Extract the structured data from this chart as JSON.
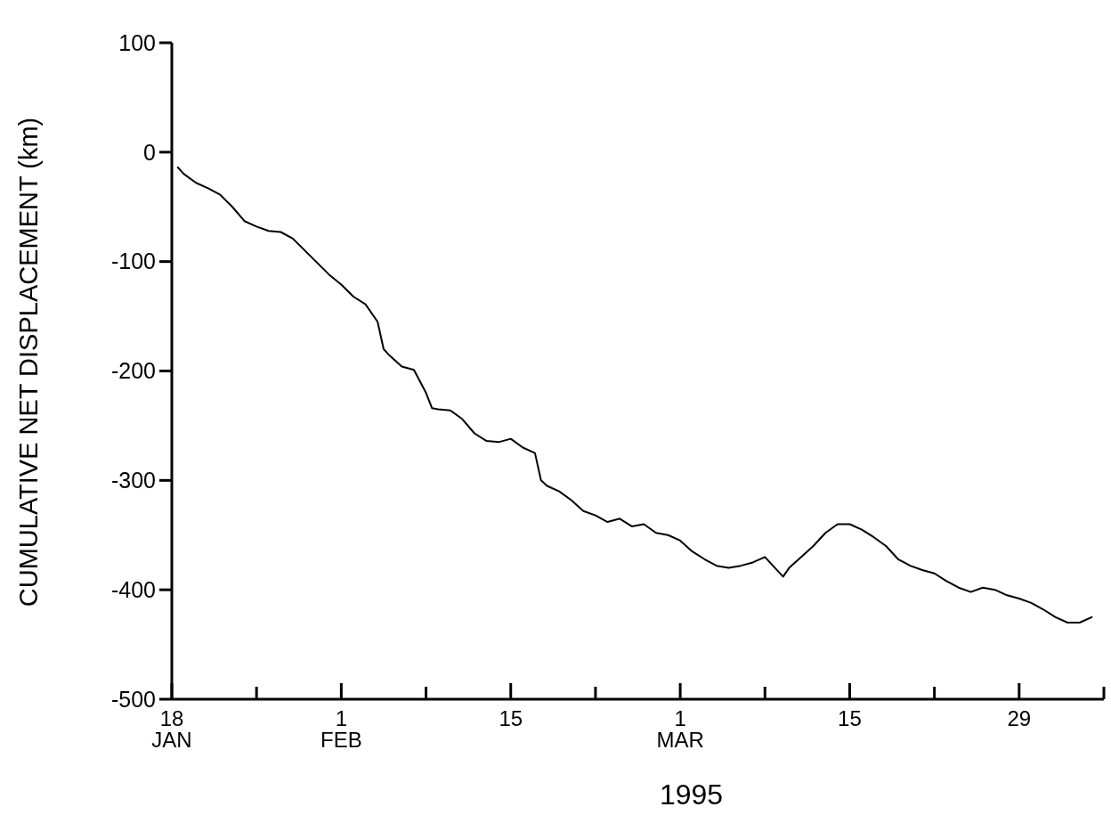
{
  "chart_data": {
    "type": "line",
    "xlabel": "1995",
    "ylabel": "CUMULATIVE NET DISPLACEMENT (km)",
    "xlim": [
      "1995-01-18",
      "1995-04-05"
    ],
    "xticks": [
      {
        "value": "1995-01-18",
        "label": "18\nJAN"
      },
      {
        "value": "1995-01-25",
        "label": null
      },
      {
        "value": "1995-02-01",
        "label": "1\nFEB"
      },
      {
        "value": "1995-02-08",
        "label": null
      },
      {
        "value": "1995-02-15",
        "label": "15"
      },
      {
        "value": "1995-02-22",
        "label": null
      },
      {
        "value": "1995-03-01",
        "label": "1\nMAR"
      },
      {
        "value": "1995-03-08",
        "label": null
      },
      {
        "value": "1995-03-15",
        "label": "15"
      },
      {
        "value": "1995-03-22",
        "label": null
      },
      {
        "value": "1995-03-29",
        "label": "29"
      },
      {
        "value": "1995-04-05",
        "label": null
      }
    ],
    "ylim": [
      -500,
      100
    ],
    "yticks": [
      -500,
      -400,
      -300,
      -200,
      -100,
      0,
      100
    ],
    "grid": false,
    "marker": "none",
    "line_style": "solid",
    "series": [
      {
        "color": "#000000",
        "x": [
          "1995-01-18T12:00",
          "1995-01-19",
          "1995-01-20",
          "1995-01-21",
          "1995-01-22",
          "1995-01-23",
          "1995-01-24",
          "1995-01-25",
          "1995-01-26",
          "1995-01-27",
          "1995-01-28",
          "1995-01-29",
          "1995-01-30",
          "1995-01-31",
          "1995-02-01",
          "1995-02-02",
          "1995-02-03",
          "1995-02-04",
          "1995-02-04T12:00",
          "1995-02-05",
          "1995-02-06",
          "1995-02-07",
          "1995-02-08",
          "1995-02-08T12:00",
          "1995-02-09",
          "1995-02-10",
          "1995-02-11",
          "1995-02-12",
          "1995-02-13",
          "1995-02-14",
          "1995-02-15",
          "1995-02-16",
          "1995-02-17",
          "1995-02-17T12:00",
          "1995-02-18",
          "1995-02-19",
          "1995-02-20",
          "1995-02-21",
          "1995-02-22",
          "1995-02-23",
          "1995-02-24",
          "1995-02-25",
          "1995-02-26",
          "1995-02-27",
          "1995-02-28",
          "1995-03-01",
          "1995-03-02",
          "1995-03-03",
          "1995-03-04",
          "1995-03-05",
          "1995-03-06",
          "1995-03-07",
          "1995-03-08",
          "1995-03-09",
          "1995-03-09T12:00",
          "1995-03-10",
          "1995-03-11",
          "1995-03-12",
          "1995-03-13",
          "1995-03-14",
          "1995-03-15",
          "1995-03-16",
          "1995-03-17",
          "1995-03-18",
          "1995-03-19",
          "1995-03-20",
          "1995-03-21",
          "1995-03-22",
          "1995-03-23",
          "1995-03-24",
          "1995-03-25",
          "1995-03-26",
          "1995-03-27",
          "1995-03-28",
          "1995-03-29",
          "1995-03-30",
          "1995-03-31",
          "1995-04-01",
          "1995-04-02",
          "1995-04-03",
          "1995-04-04"
        ],
        "values": [
          -14,
          -20,
          -28,
          -33,
          -39,
          -50,
          -63,
          -68,
          -72,
          -73,
          -79,
          -90,
          -101,
          -112,
          -121,
          -132,
          -139,
          -155,
          -180,
          -186,
          -196,
          -199,
          -220,
          -234,
          -235,
          -236,
          -244,
          -257,
          -264,
          -265,
          -262,
          -270,
          -275,
          -300,
          -305,
          -310,
          -318,
          -328,
          -332,
          -338,
          -335,
          -342,
          -340,
          -348,
          -350,
          -355,
          -365,
          -372,
          -378,
          -380,
          -378,
          -375,
          -370,
          -382,
          -388,
          -380,
          -370,
          -360,
          -348,
          -340,
          -340,
          -345,
          -352,
          -360,
          -372,
          -378,
          -382,
          -385,
          -392,
          -398,
          -402,
          -398,
          -400,
          -405,
          -408,
          -412,
          -418,
          -425,
          -430,
          -430,
          -425
        ]
      }
    ]
  }
}
